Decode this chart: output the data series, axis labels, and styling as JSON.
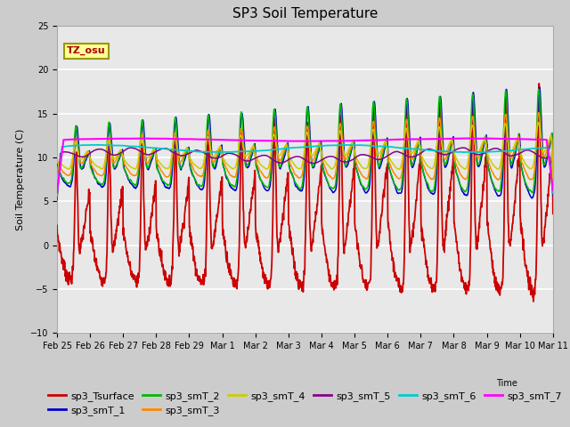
{
  "title": "SP3 Soil Temperature",
  "ylabel": "Soil Temperature (C)",
  "ylim": [
    -10,
    25
  ],
  "series_names": [
    "sp3_Tsurface",
    "sp3_smT_1",
    "sp3_smT_2",
    "sp3_smT_3",
    "sp3_smT_4",
    "sp3_smT_5",
    "sp3_smT_6",
    "sp3_smT_7"
  ],
  "series_colors": [
    "#cc0000",
    "#0000cc",
    "#00bb00",
    "#ff8800",
    "#cccc00",
    "#880088",
    "#00cccc",
    "#ff00ff"
  ],
  "xtick_labels": [
    "Feb 25",
    "Feb 26",
    "Feb 27",
    "Feb 28",
    "Feb 29",
    "Mar 1",
    "Mar 2",
    "Mar 3",
    "Mar 4",
    "Mar 5",
    "Mar 6",
    "Mar 7",
    "Mar 8",
    "Mar 9",
    "Mar 10",
    "Mar 11"
  ],
  "annotation_text": "TZ_osu",
  "annotation_color": "#aa0000",
  "annotation_bg": "#ffff99",
  "annotation_border": "#999900",
  "plot_bg_color": "#e8e8e8",
  "fig_bg_color": "#cccccc",
  "grid_color": "#ffffff",
  "title_fontsize": 11,
  "tick_fontsize": 7,
  "legend_fontsize": 8
}
